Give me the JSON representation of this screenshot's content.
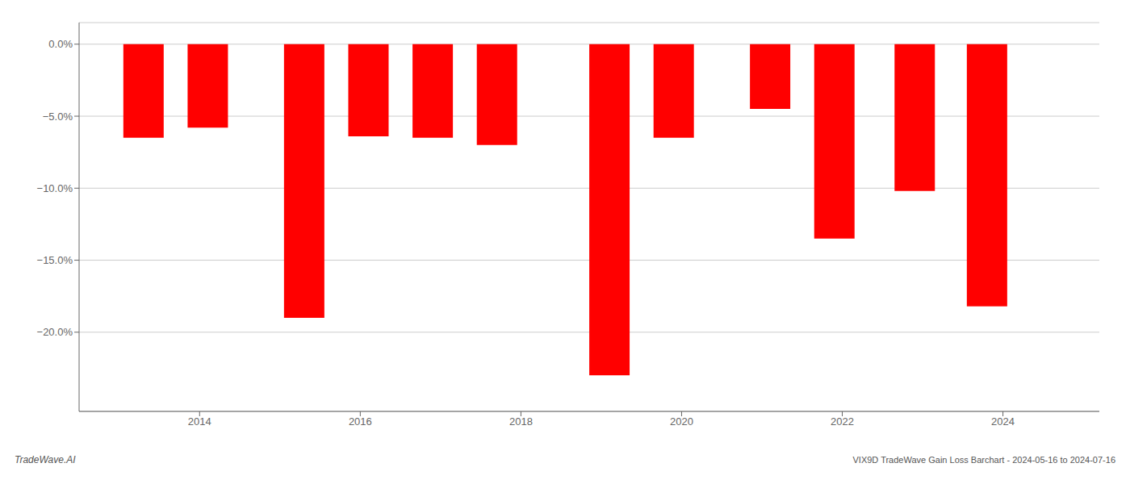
{
  "chart_data": {
    "type": "bar",
    "x": [
      2013.3,
      2014.1,
      2015.3,
      2016.1,
      2016.9,
      2017.7,
      2019.1,
      2019.9,
      2021.1,
      2021.9,
      2022.9,
      2023.8
    ],
    "values": [
      -6.5,
      -5.8,
      -19.0,
      -6.4,
      -6.5,
      -7.0,
      -23.0,
      -6.5,
      -4.5,
      -13.5,
      -10.2,
      -18.2
    ],
    "color": "#ff0000",
    "xlim": [
      2012.5,
      2025.2
    ],
    "xticks": [
      2014,
      2016,
      2018,
      2020,
      2022,
      2024
    ],
    "ylim": [
      -25.5,
      1.5
    ],
    "yticks": [
      {
        "value": 0,
        "label": "0.0%"
      },
      {
        "value": -5,
        "label": "−5.0%"
      },
      {
        "value": -10,
        "label": "−10.0%"
      },
      {
        "value": -15,
        "label": "−15.0%"
      },
      {
        "value": -20,
        "label": "−20.0%"
      }
    ],
    "grid": true,
    "annotations": [
      "TradeWave.AI",
      "VIX9D TradeWave Gain Loss Barchart - 2024-05-16 to 2024-07-16"
    ]
  }
}
